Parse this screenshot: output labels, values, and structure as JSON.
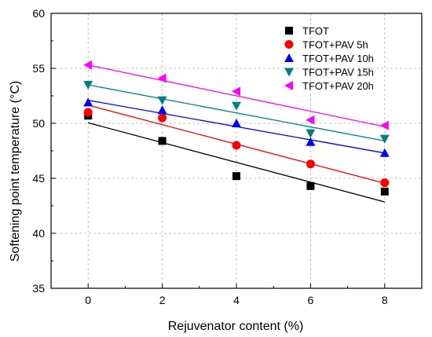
{
  "chart_data": {
    "type": "scatter",
    "xlabel": "Rejuvenator content (%)",
    "ylabel": "Softening point temperature (",
    "ylabel_unit": "°C",
    "ylabel_close": ")",
    "xlim": [
      -1,
      9
    ],
    "ylim": [
      35,
      60
    ],
    "x_ticks": [
      0,
      2,
      4,
      6,
      8
    ],
    "y_ticks": [
      35,
      40,
      45,
      50,
      55,
      60
    ],
    "grid": true,
    "legend_position": "top-right",
    "series": [
      {
        "name": "TFOT",
        "marker": "square",
        "color": "#000000",
        "x": [
          0,
          2,
          4,
          6,
          8
        ],
        "y": [
          50.7,
          48.4,
          45.2,
          44.3,
          43.8
        ],
        "fit": [
          50.05,
          42.85
        ]
      },
      {
        "name": "TFOT+PAV 5h",
        "marker": "circle",
        "color": "#ff0000",
        "x": [
          0,
          2,
          4,
          6,
          8
        ],
        "y": [
          51.0,
          50.5,
          48.0,
          46.3,
          44.6
        ],
        "fit": [
          51.65,
          44.55
        ]
      },
      {
        "name": "TFOT+PAV 10h",
        "marker": "triangle-up",
        "color": "#0000ff",
        "x": [
          0,
          2,
          4,
          6,
          8
        ],
        "y": [
          51.9,
          51.2,
          50.0,
          48.3,
          47.3
        ],
        "fit": [
          52.1,
          47.3
        ]
      },
      {
        "name": "TFOT+PAV 15h",
        "marker": "triangle-down",
        "color": "#008080",
        "x": [
          0,
          2,
          4,
          6,
          8
        ],
        "y": [
          53.5,
          52.1,
          51.6,
          49.1,
          48.6
        ],
        "fit": [
          53.5,
          48.4
        ]
      },
      {
        "name": "TFOT+PAV 20h",
        "marker": "triangle-left",
        "color": "#ff00ff",
        "x": [
          0,
          2,
          4,
          6,
          8
        ],
        "y": [
          55.3,
          54.1,
          52.9,
          50.3,
          49.8
        ],
        "fit": [
          55.3,
          49.7
        ]
      }
    ]
  }
}
